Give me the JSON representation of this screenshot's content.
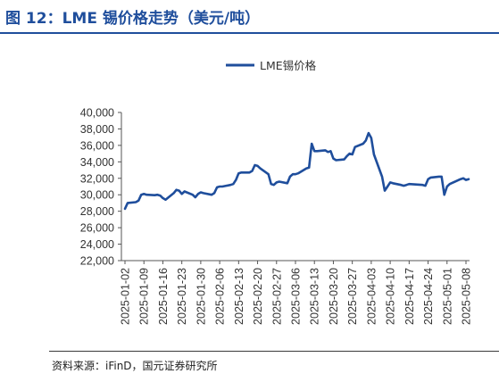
{
  "header": {
    "title": "图 12：LME 锡价格走势（美元/吨）"
  },
  "footer": {
    "source": "资料来源：iFinD，国元证券研究所"
  },
  "colors": {
    "title": "#1f4e9c",
    "series": "#1f4e9c"
  },
  "chart_data": {
    "type": "line",
    "title": "",
    "xlabel": "",
    "ylabel": "",
    "ylim": [
      22000,
      40000
    ],
    "yticks": [
      "40,000",
      "38,000",
      "36,000",
      "34,000",
      "32,000",
      "30,000",
      "28,000",
      "26,000",
      "24,000",
      "22,000"
    ],
    "xticks": [
      "2025-01-02",
      "2025-01-09",
      "2025-01-16",
      "2025-01-23",
      "2025-01-30",
      "2025-02-06",
      "2025-02-13",
      "2025-02-20",
      "2025-02-27",
      "2025-03-06",
      "2025-03-13",
      "2025-03-20",
      "2025-03-27",
      "2025-04-03",
      "2025-04-10",
      "2025-04-17",
      "2025-04-24",
      "2025-05-01",
      "2025-05-08"
    ],
    "legend": {
      "position": "top",
      "entries": [
        "LME锡价格"
      ]
    },
    "grid": false,
    "series": [
      {
        "name": "LME锡价格",
        "x": [
          "2025-01-02",
          "2025-01-03",
          "2025-01-06",
          "2025-01-07",
          "2025-01-08",
          "2025-01-09",
          "2025-01-10",
          "2025-01-13",
          "2025-01-14",
          "2025-01-15",
          "2025-01-16",
          "2025-01-17",
          "2025-01-20",
          "2025-01-21",
          "2025-01-22",
          "2025-01-23",
          "2025-01-24",
          "2025-01-27",
          "2025-01-28",
          "2025-01-29",
          "2025-01-30",
          "2025-01-31",
          "2025-02-03",
          "2025-02-04",
          "2025-02-05",
          "2025-02-06",
          "2025-02-07",
          "2025-02-10",
          "2025-02-11",
          "2025-02-12",
          "2025-02-13",
          "2025-02-14",
          "2025-02-17",
          "2025-02-18",
          "2025-02-19",
          "2025-02-20",
          "2025-02-21",
          "2025-02-24",
          "2025-02-25",
          "2025-02-26",
          "2025-02-27",
          "2025-02-28",
          "2025-03-03",
          "2025-03-04",
          "2025-03-05",
          "2025-03-06",
          "2025-03-07",
          "2025-03-10",
          "2025-03-11",
          "2025-03-12",
          "2025-03-13",
          "2025-03-14",
          "2025-03-17",
          "2025-03-18",
          "2025-03-19",
          "2025-03-20",
          "2025-03-21",
          "2025-03-24",
          "2025-03-25",
          "2025-03-26",
          "2025-03-27",
          "2025-03-28",
          "2025-03-31",
          "2025-04-01",
          "2025-04-02",
          "2025-04-03",
          "2025-04-04",
          "2025-04-07",
          "2025-04-08",
          "2025-04-09",
          "2025-04-10",
          "2025-04-11",
          "2025-04-14",
          "2025-04-15",
          "2025-04-16",
          "2025-04-17",
          "2025-04-22",
          "2025-04-23",
          "2025-04-24",
          "2025-04-25",
          "2025-04-28",
          "2025-04-29",
          "2025-04-30",
          "2025-05-01",
          "2025-05-02",
          "2025-05-06",
          "2025-05-07",
          "2025-05-08",
          "2025-05-09"
        ],
        "values": [
          28300,
          29000,
          29100,
          29300,
          30000,
          30100,
          30000,
          29950,
          30000,
          29900,
          29600,
          29400,
          30200,
          30600,
          30500,
          30100,
          30400,
          30000,
          29700,
          30100,
          30300,
          30200,
          30000,
          30200,
          30900,
          31000,
          31000,
          31200,
          31300,
          31800,
          32600,
          32700,
          32700,
          32900,
          33600,
          33500,
          33200,
          32500,
          31300,
          31200,
          31500,
          31600,
          31400,
          32200,
          32500,
          32500,
          32600,
          33200,
          33300,
          36200,
          35300,
          35300,
          35400,
          35200,
          35300,
          34400,
          34200,
          34300,
          34700,
          35000,
          34900,
          35800,
          36200,
          36600,
          37500,
          36900,
          34900,
          32200,
          30500,
          31000,
          31500,
          31400,
          31200,
          31100,
          31200,
          31300,
          31200,
          31100,
          31900,
          32100,
          32200,
          32200,
          30000,
          31000,
          31300,
          31900,
          32000,
          31800,
          31900
        ]
      }
    ]
  }
}
